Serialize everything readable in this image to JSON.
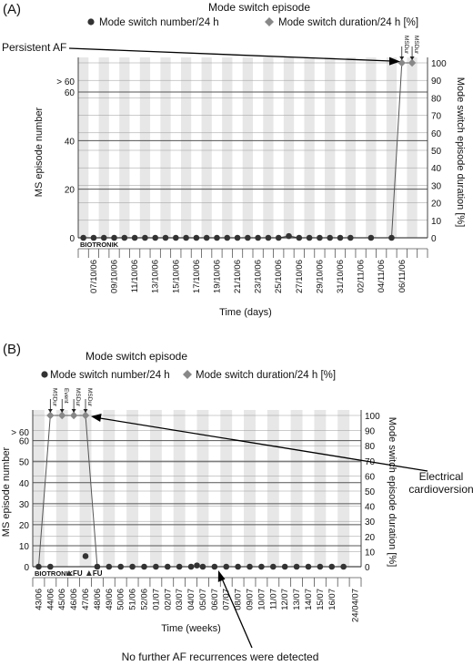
{
  "chart_data": [
    {
      "panel_label": "(A)",
      "type": "line",
      "title": "Mode switch episode",
      "xlabel": "Time (days)",
      "ylabel_left": "MS episode number",
      "ylabel_right": "Mode switch episode duration [%]",
      "ylim_left": [
        0,
        60
      ],
      "ylim_right": [
        0,
        100
      ],
      "left_ticks": [
        "0",
        "20",
        "40",
        "60",
        "> 60"
      ],
      "right_ticks": [
        "0",
        "10",
        "20",
        "30",
        "40",
        "50",
        "60",
        "70",
        "80",
        "90",
        "100"
      ],
      "x_tick_labels": [
        "07/10/06",
        "09/10/06",
        "11/10/06",
        "13/10/06",
        "15/10/06",
        "17/10/06",
        "19/10/06",
        "21/10/06",
        "23/10/06",
        "25/10/06",
        "27/10/06",
        "29/10/06",
        "31/10/06",
        "02/11/06",
        "04/11/06",
        "06/11/06"
      ],
      "n_days": 32,
      "series": [
        {
          "name": "Mode switch number/24 h",
          "marker": "circle",
          "color": "#333333",
          "points": [
            [
              0,
              0
            ],
            [
              1,
              0
            ],
            [
              2,
              0
            ],
            [
              3,
              0
            ],
            [
              4,
              0
            ],
            [
              5,
              0
            ],
            [
              6,
              0
            ],
            [
              7,
              0
            ],
            [
              8,
              0
            ],
            [
              9,
              0
            ],
            [
              10,
              0
            ],
            [
              11,
              0
            ],
            [
              12,
              0
            ],
            [
              13,
              0
            ],
            [
              14,
              0
            ],
            [
              15,
              0
            ],
            [
              16,
              0
            ],
            [
              17,
              0
            ],
            [
              18,
              0
            ],
            [
              19,
              0
            ],
            [
              20,
              0.7
            ],
            [
              21,
              0
            ],
            [
              22,
              0
            ],
            [
              23,
              0
            ],
            [
              24,
              0
            ],
            [
              25,
              0
            ],
            [
              26,
              0
            ],
            [
              28,
              0
            ],
            [
              30,
              0
            ]
          ]
        },
        {
          "name": "Mode switch duration/24 h [%]",
          "marker": "diamond",
          "color": "#888888",
          "points": [
            [
              30,
              0
            ],
            [
              31,
              100
            ],
            [
              32,
              100
            ]
          ]
        }
      ],
      "event_labels": [
        {
          "text": "MSDur",
          "x": 31
        },
        {
          "text": "MSDur",
          "x": 32
        }
      ],
      "watermark": "BIOTRONIK",
      "annotations": [
        {
          "text": "Persistent AF"
        }
      ]
    },
    {
      "panel_label": "(B)",
      "type": "line",
      "title": "Mode switch episode",
      "xlabel": "Time (weeks)",
      "ylabel_left": "MS episode number",
      "ylabel_right": "Mode switch episode duration [%]",
      "ylim_left": [
        0,
        60
      ],
      "ylim_right": [
        0,
        100
      ],
      "left_ticks": [
        "0",
        "10",
        "20",
        "30",
        "40",
        "50",
        "60",
        "> 60"
      ],
      "right_ticks": [
        "0",
        "10",
        "20",
        "30",
        "40",
        "50",
        "60",
        "70",
        "80",
        "90",
        "100"
      ],
      "x_tick_labels": [
        "43/06",
        "44/06",
        "45/06",
        "46/06",
        "47/06",
        "48/06",
        "49/06",
        "50/06",
        "51/06",
        "52/06",
        "01/07",
        "02/07",
        "03/07",
        "04/07",
        "05/07",
        "06/07",
        "07/07",
        "08/07",
        "09/07",
        "10/07",
        "11/07",
        "12/07",
        "13/07",
        "14/07",
        "15/07",
        "16/07",
        "24/04/07"
      ],
      "series": [
        {
          "name": "Mode switch number/24 h",
          "marker": "circle",
          "color": "#333333",
          "points": [
            [
              0,
              0
            ],
            [
              1,
              0
            ],
            [
              4,
              5
            ],
            [
              5,
              0
            ],
            [
              6,
              0
            ],
            [
              7,
              0
            ],
            [
              8,
              0
            ],
            [
              9,
              0
            ],
            [
              10,
              0
            ],
            [
              11,
              0
            ],
            [
              12,
              0
            ],
            [
              13,
              0
            ],
            [
              13.5,
              0.6
            ],
            [
              14,
              0
            ],
            [
              15,
              0
            ],
            [
              16,
              0
            ],
            [
              17,
              0
            ],
            [
              18,
              0
            ],
            [
              19,
              0
            ],
            [
              20,
              0
            ],
            [
              21,
              0
            ],
            [
              22,
              0
            ],
            [
              23,
              0
            ],
            [
              24,
              0
            ],
            [
              25,
              0
            ],
            [
              26,
              0
            ]
          ]
        },
        {
          "name": "Mode switch duration/24 h [%]",
          "marker": "diamond",
          "color": "#888888",
          "points": [
            [
              0,
              0
            ],
            [
              1,
              100
            ],
            [
              2,
              100
            ],
            [
              3,
              100
            ],
            [
              4,
              100
            ],
            [
              5,
              0
            ]
          ]
        }
      ],
      "event_labels": [
        {
          "text": "MSDur",
          "x": 1
        },
        {
          "text": "Event",
          "x": 2
        },
        {
          "text": "MSDur",
          "x": 3
        },
        {
          "text": "MSDur",
          "x": 4
        }
      ],
      "fu_markers": [
        {
          "text": "FU",
          "x": 2.6
        },
        {
          "text": "FU",
          "x": 4.3
        }
      ],
      "watermark": "BIOTRONIK",
      "annotations": [
        {
          "text": "Electrical",
          "text2": "cardioversion"
        },
        {
          "text": "No further AF recurrences were detected"
        }
      ]
    }
  ]
}
